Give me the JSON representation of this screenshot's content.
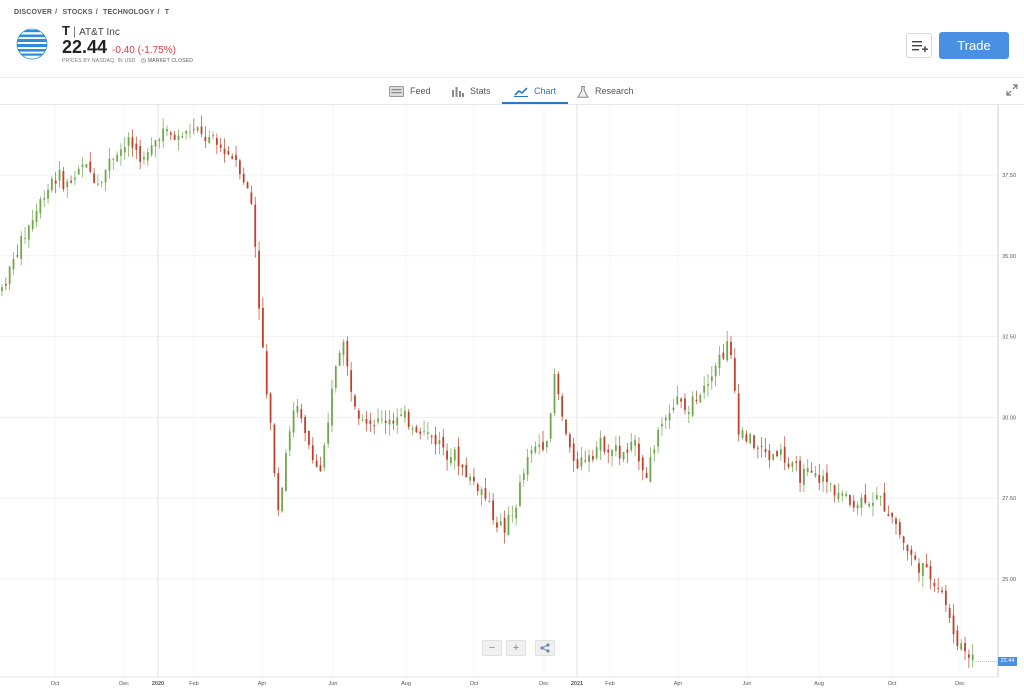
{
  "breadcrumb": {
    "discover": "DISCOVER",
    "stocks": "STOCKS",
    "technology": "TECHNOLOGY",
    "symbol": "T",
    "sep": "/"
  },
  "instrument": {
    "symbol": "T",
    "separator": "|",
    "name": "AT&T Inc",
    "price": "22.44",
    "change": "-0.40 (-1.75%)",
    "meta": "PRICES BY NASDAQ, IN USD",
    "market_status": "MARKET CLOSED"
  },
  "actions": {
    "trade": "Trade"
  },
  "tabs": [
    {
      "label": "Feed",
      "icon": "feed-icon"
    },
    {
      "label": "Stats",
      "icon": "stats-icon"
    },
    {
      "label": "Chart",
      "icon": "chart-icon",
      "active": true
    },
    {
      "label": "Research",
      "icon": "research-icon"
    }
  ],
  "zoom": {
    "minus": "−",
    "plus": "+"
  },
  "colors": {
    "up": "#6fa84c",
    "down": "#c2402a",
    "accent": "#4a90e2",
    "negative": "#e0393e"
  },
  "chart_data": {
    "type": "candlestick",
    "y_ticks": [
      "37.50",
      "35.00",
      "32.50",
      "30.00",
      "27.50",
      "25.00"
    ],
    "ylim": [
      22.0,
      39.5
    ],
    "x_ticks": [
      "Oct",
      "Dec",
      "2020",
      "Feb",
      "Apr",
      "Jun",
      "Aug",
      "Oct",
      "Dec",
      "2021",
      "Feb",
      "Apr",
      "Jun",
      "Aug",
      "Oct",
      "Dec"
    ],
    "last_price": "22.44",
    "close_path": [
      [
        0,
        34.0
      ],
      [
        8,
        35.5
      ],
      [
        14,
        36.5
      ],
      [
        20,
        37.5
      ],
      [
        26,
        37.2
      ],
      [
        32,
        37.8
      ],
      [
        38,
        37.3
      ],
      [
        44,
        38.2
      ],
      [
        50,
        38.5
      ],
      [
        56,
        37.9
      ],
      [
        62,
        38.9
      ],
      [
        68,
        38.6
      ],
      [
        74,
        38.9
      ],
      [
        80,
        38.6
      ],
      [
        86,
        38.3
      ],
      [
        92,
        38.0
      ],
      [
        98,
        36.5
      ],
      [
        101,
        33.0
      ],
      [
        103,
        31.0
      ],
      [
        106,
        29.0
      ],
      [
        108,
        27.2
      ],
      [
        110,
        28.4
      ],
      [
        112,
        29.5
      ],
      [
        115,
        30.4
      ],
      [
        118,
        29.5
      ],
      [
        121,
        29.0
      ],
      [
        124,
        28.2
      ],
      [
        127,
        29.3
      ],
      [
        130,
        31.5
      ],
      [
        133,
        32.5
      ],
      [
        136,
        31.0
      ],
      [
        140,
        30.2
      ],
      [
        146,
        29.8
      ],
      [
        152,
        30.0
      ],
      [
        158,
        29.9
      ],
      [
        164,
        29.6
      ],
      [
        170,
        29.3
      ],
      [
        176,
        28.9
      ],
      [
        182,
        28.2
      ],
      [
        188,
        27.7
      ],
      [
        192,
        27.0
      ],
      [
        196,
        26.5
      ],
      [
        200,
        27.0
      ],
      [
        203,
        28.0
      ],
      [
        206,
        28.8
      ],
      [
        210,
        29.2
      ],
      [
        214,
        29.5
      ],
      [
        216,
        31.3
      ],
      [
        219,
        30.0
      ],
      [
        222,
        28.9
      ],
      [
        226,
        28.6
      ],
      [
        230,
        29.0
      ],
      [
        236,
        29.2
      ],
      [
        242,
        28.8
      ],
      [
        248,
        29.1
      ],
      [
        252,
        28.2
      ],
      [
        256,
        29.5
      ],
      [
        260,
        30.2
      ],
      [
        264,
        30.5
      ],
      [
        268,
        30.1
      ],
      [
        272,
        30.8
      ],
      [
        276,
        31.3
      ],
      [
        280,
        31.8
      ],
      [
        284,
        32.3
      ],
      [
        286,
        31.2
      ],
      [
        288,
        29.7
      ],
      [
        292,
        29.3
      ],
      [
        296,
        29.0
      ],
      [
        300,
        28.8
      ],
      [
        304,
        29.0
      ],
      [
        308,
        28.4
      ],
      [
        314,
        28.2
      ],
      [
        320,
        28.1
      ],
      [
        326,
        27.8
      ],
      [
        332,
        27.3
      ],
      [
        338,
        27.5
      ],
      [
        344,
        27.4
      ],
      [
        348,
        27.0
      ],
      [
        352,
        26.2
      ],
      [
        356,
        25.6
      ],
      [
        360,
        25.3
      ],
      [
        364,
        25.0
      ],
      [
        368,
        24.6
      ],
      [
        370,
        23.8
      ],
      [
        373,
        23.1
      ],
      [
        376,
        22.9
      ],
      [
        380,
        22.44
      ]
    ]
  }
}
